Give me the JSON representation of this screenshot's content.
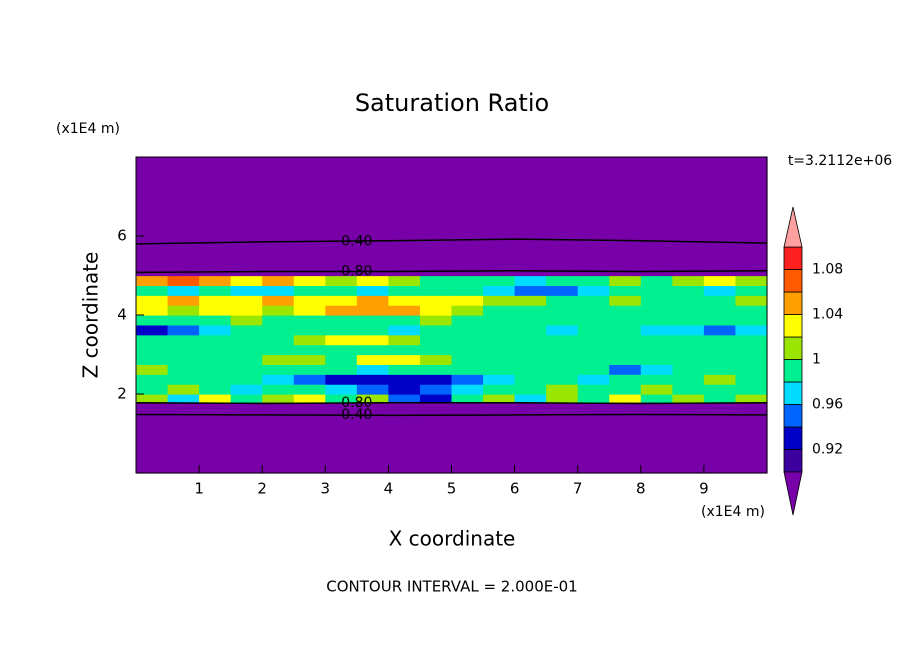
{
  "chart_data": {
    "type": "contour",
    "title": "Saturation Ratio",
    "x_label": "X coordinate",
    "y_label": "Z coordinate",
    "x_unit": "(x1E4 m)",
    "y_unit": "(x1E4 m)",
    "time_label": "t=3.2112e+06",
    "footer": "CONTOUR INTERVAL = 2.000E-01",
    "xlim": [
      0,
      10
    ],
    "ylim": [
      0,
      8
    ],
    "xticks": [
      1,
      2,
      3,
      4,
      5,
      6,
      7,
      8,
      9
    ],
    "yticks": [
      2,
      4,
      6
    ],
    "x_edges": [
      0,
      0.5,
      1,
      1.5,
      2,
      2.5,
      3,
      3.5,
      4,
      4.5,
      5,
      5.5,
      6,
      6.5,
      7,
      7.5,
      8,
      8.5,
      9,
      9.5,
      10
    ],
    "y_edges": [
      0,
      1.8,
      2.0,
      2.25,
      2.5,
      2.75,
      3.0,
      3.25,
      3.5,
      3.75,
      4.0,
      4.25,
      4.5,
      4.75,
      5.0,
      8
    ],
    "z": [
      [
        0.5,
        0.5,
        0.5,
        0.5,
        0.5,
        0.5,
        0.5,
        0.5,
        0.5,
        0.5,
        0.5,
        0.5,
        0.5,
        0.5,
        0.5,
        0.5,
        0.5,
        0.5,
        0.5,
        0.5
      ],
      [
        1.01,
        0.97,
        1.03,
        0.99,
        1.01,
        1.03,
        0.99,
        1.01,
        0.95,
        0.93,
        0.99,
        1.01,
        0.97,
        1.01,
        0.99,
        1.03,
        0.99,
        1.01,
        0.99,
        1.01
      ],
      [
        0.99,
        1.01,
        0.99,
        0.97,
        0.99,
        0.99,
        0.97,
        0.95,
        0.93,
        0.95,
        0.97,
        0.99,
        0.99,
        1.01,
        0.99,
        0.99,
        1.01,
        0.99,
        0.99,
        0.99
      ],
      [
        0.99,
        0.99,
        0.99,
        0.99,
        0.97,
        0.95,
        0.93,
        0.93,
        0.93,
        0.93,
        0.95,
        0.97,
        0.99,
        0.99,
        0.97,
        0.99,
        0.99,
        0.99,
        1.01,
        0.99
      ],
      [
        1.01,
        0.99,
        0.99,
        0.99,
        0.99,
        0.99,
        0.99,
        0.97,
        0.99,
        0.99,
        0.99,
        0.99,
        0.99,
        0.99,
        0.99,
        0.95,
        0.97,
        0.99,
        0.99,
        0.99
      ],
      [
        0.99,
        0.99,
        0.99,
        0.99,
        1.01,
        1.01,
        0.99,
        1.03,
        1.03,
        1.01,
        0.99,
        0.99,
        0.99,
        0.99,
        0.99,
        0.99,
        0.99,
        0.99,
        0.99,
        0.99
      ],
      [
        0.99,
        0.99,
        0.99,
        0.99,
        0.99,
        0.99,
        0.99,
        0.99,
        0.99,
        0.99,
        0.99,
        0.99,
        0.99,
        0.99,
        0.99,
        0.99,
        0.99,
        0.99,
        0.99,
        0.99
      ],
      [
        0.99,
        0.99,
        0.99,
        0.99,
        0.99,
        1.01,
        1.03,
        1.03,
        1.01,
        0.99,
        0.99,
        0.99,
        0.99,
        0.99,
        0.99,
        0.99,
        0.99,
        0.99,
        0.99,
        0.99
      ],
      [
        0.93,
        0.95,
        0.97,
        0.99,
        0.99,
        0.99,
        0.99,
        0.99,
        0.97,
        0.99,
        0.99,
        0.99,
        0.99,
        0.97,
        0.99,
        0.99,
        0.97,
        0.97,
        0.95,
        0.97
      ],
      [
        0.99,
        0.99,
        0.99,
        1.01,
        0.99,
        0.99,
        0.99,
        0.99,
        0.99,
        1.01,
        0.99,
        0.99,
        0.99,
        0.99,
        0.99,
        0.99,
        0.99,
        0.99,
        0.99,
        0.99
      ],
      [
        1.03,
        1.01,
        1.03,
        1.03,
        1.01,
        1.03,
        1.05,
        1.05,
        1.05,
        1.03,
        1.01,
        0.99,
        0.99,
        0.99,
        0.99,
        0.99,
        0.99,
        0.99,
        0.99,
        0.99
      ],
      [
        1.03,
        1.05,
        1.03,
        1.03,
        1.05,
        1.03,
        1.03,
        1.05,
        1.03,
        1.03,
        1.03,
        1.01,
        1.01,
        0.99,
        0.99,
        1.01,
        0.99,
        0.99,
        0.99,
        1.01
      ],
      [
        0.99,
        0.97,
        0.99,
        0.97,
        0.97,
        0.99,
        0.99,
        0.97,
        0.99,
        0.99,
        0.99,
        0.97,
        0.95,
        0.95,
        0.97,
        0.99,
        0.99,
        0.99,
        0.97,
        0.99
      ],
      [
        1.05,
        1.07,
        1.05,
        1.03,
        1.05,
        1.03,
        1.01,
        1.03,
        1.01,
        0.99,
        0.99,
        0.99,
        0.97,
        0.99,
        0.99,
        1.01,
        0.99,
        1.01,
        1.03,
        1.01
      ],
      [
        0.3,
        0.3,
        0.3,
        0.3,
        0.3,
        0.3,
        0.3,
        0.3,
        0.3,
        0.3,
        0.3,
        0.3,
        0.3,
        0.3,
        0.3,
        0.3,
        0.3,
        0.3,
        0.3,
        0.3
      ]
    ],
    "levels": [
      0.9,
      0.92,
      0.94,
      0.96,
      0.98,
      1,
      1.02,
      1.04,
      1.06,
      1.08,
      1.1
    ],
    "colors": [
      "#3c00a0",
      "#0000c8",
      "#0064ff",
      "#00dcff",
      "#00f090",
      "#9be600",
      "#ffff00",
      "#ffa000",
      "#ff5a00",
      "#ff2020"
    ],
    "under_color": "#7800a8",
    "over_color": "#ffa0a0",
    "colorbar_ticks": [
      0.92,
      0.96,
      1,
      1.04,
      1.08
    ],
    "contours": [
      {
        "level": {
          "value": 0.4,
          "label": "0.40"
        },
        "x": [
          0,
          2,
          4,
          6,
          8,
          10
        ],
        "y": [
          5.8,
          5.85,
          5.88,
          5.92,
          5.88,
          5.82
        ]
      },
      {
        "level": {
          "value": 0.8,
          "label": "0.80"
        },
        "x": [
          0,
          2,
          4,
          6,
          8,
          10
        ],
        "y": [
          5.08,
          5.1,
          5.1,
          5.12,
          5.1,
          5.12
        ]
      },
      {
        "level": {
          "value": 0.8,
          "label": "0.80"
        },
        "x": [
          0,
          2,
          4,
          6,
          8,
          10
        ],
        "y": [
          1.78,
          1.76,
          1.78,
          1.78,
          1.76,
          1.78
        ]
      },
      {
        "level": {
          "value": 0.4,
          "label": "0.40"
        },
        "x": [
          0,
          2,
          4,
          6,
          8,
          10
        ],
        "y": [
          1.48,
          1.47,
          1.46,
          1.47,
          1.48,
          1.47
        ]
      }
    ]
  }
}
